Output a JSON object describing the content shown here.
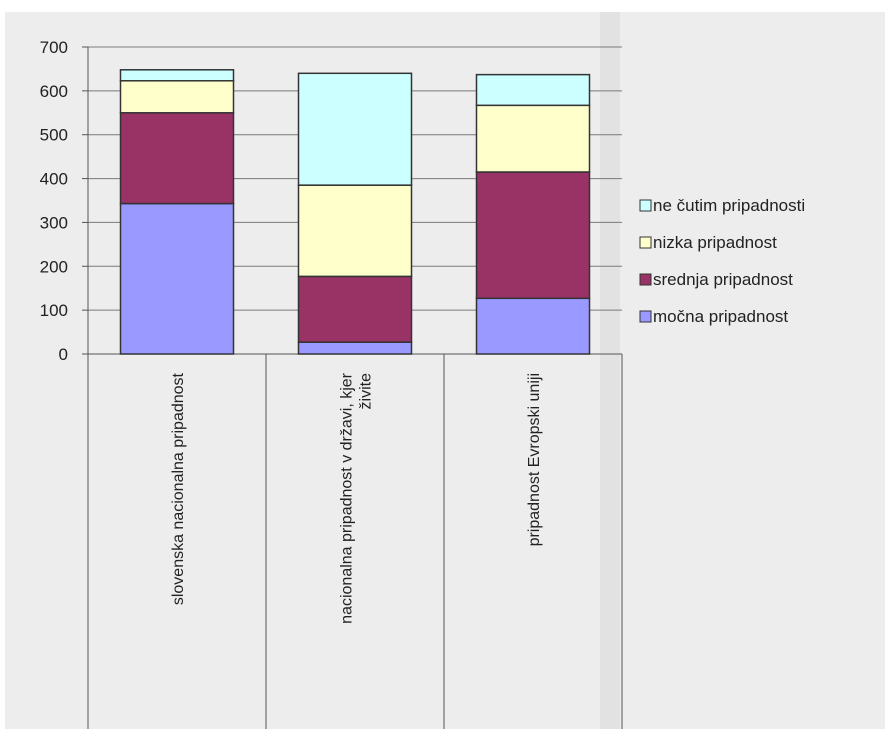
{
  "chart_data": {
    "type": "bar",
    "stacked": true,
    "categories": [
      "slovenska nacionalna pripadnost",
      "nacionalna pripadnost v državi, kjer živite",
      "pripadnost Evropski uniji"
    ],
    "category_lines": [
      [
        "slovenska nacionalna pripadnost"
      ],
      [
        "nacionalna pripadnost v državi, kjer",
        "živite"
      ],
      [
        "pripadnost Evropski uniji"
      ]
    ],
    "series": [
      {
        "name": "močna pripadnost",
        "color": "#9999ff",
        "values": [
          343,
          27,
          127
        ]
      },
      {
        "name": "srednja pripadnost",
        "color": "#993366",
        "values": [
          207,
          150,
          288
        ]
      },
      {
        "name": "nizka pripadnost",
        "color": "#ffffcc",
        "values": [
          73,
          208,
          152
        ]
      },
      {
        "name": "ne čutim pripadnosti",
        "color": "#ccffff",
        "values": [
          25,
          255,
          70
        ]
      }
    ],
    "ylim": [
      0,
      700
    ],
    "yticks": [
      0,
      100,
      200,
      300,
      400,
      500,
      600,
      700
    ],
    "grid": true,
    "legend": "right",
    "title": "",
    "xlabel": "",
    "ylabel": ""
  }
}
